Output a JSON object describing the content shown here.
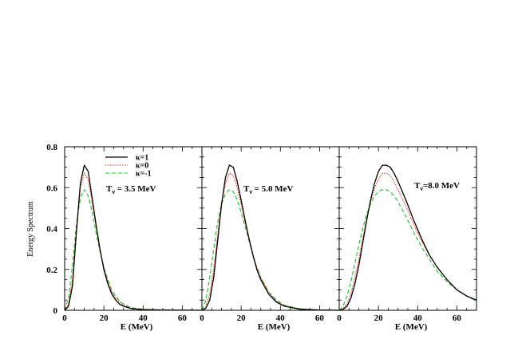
{
  "chart_data": {
    "type": "line",
    "ylabel": "Energy Spectrum",
    "xlabel": "E (MeV)",
    "ylim": [
      0,
      0.8
    ],
    "yticks": [
      0,
      0.2,
      0.4,
      0.6,
      0.8
    ],
    "ytick_labels": [
      "0",
      "0.2",
      "0.4",
      "0.6",
      "0.8"
    ],
    "xlim": [
      0,
      70
    ],
    "xticks": [
      0,
      20,
      40,
      60
    ],
    "xtick_labels": [
      "0",
      "20",
      "40",
      "60"
    ],
    "legend": {
      "placement": "top-left of first panel",
      "entries": [
        "κ=1",
        "κ=0",
        "κ=-1"
      ]
    },
    "series_styles": [
      {
        "key": "k1",
        "color": "#000000",
        "dash": "",
        "width": 1.3
      },
      {
        "key": "k0",
        "color": "#e8342a",
        "dash": "1.5,1.5",
        "width": 1.1
      },
      {
        "key": "km1",
        "color": "#22bb22",
        "dash": "5,3",
        "width": 1.1
      }
    ],
    "panels": [
      {
        "label": "T",
        "label_sub": "ν",
        "label_rest": " = 3.5 MeV",
        "peak_x": 10.5,
        "series": [
          {
            "key": "k1",
            "values": [
              [
                0,
                0
              ],
              [
                2,
                0.02
              ],
              [
                4,
                0.12
              ],
              [
                6,
                0.38
              ],
              [
                8,
                0.62
              ],
              [
                10,
                0.71
              ],
              [
                12,
                0.68
              ],
              [
                14,
                0.55
              ],
              [
                16,
                0.42
              ],
              [
                18,
                0.3
              ],
              [
                20,
                0.2
              ],
              [
                22,
                0.13
              ],
              [
                24,
                0.08
              ],
              [
                26,
                0.05
              ],
              [
                28,
                0.03
              ],
              [
                30,
                0.02
              ],
              [
                34,
                0.008
              ],
              [
                40,
                0.003
              ],
              [
                50,
                0.001
              ],
              [
                70,
                0
              ]
            ]
          },
          {
            "key": "k0",
            "values": [
              [
                0,
                0
              ],
              [
                2,
                0.03
              ],
              [
                4,
                0.15
              ],
              [
                6,
                0.4
              ],
              [
                8,
                0.6
              ],
              [
                10,
                0.67
              ],
              [
                12,
                0.64
              ],
              [
                14,
                0.53
              ],
              [
                16,
                0.41
              ],
              [
                18,
                0.3
              ],
              [
                20,
                0.21
              ],
              [
                22,
                0.14
              ],
              [
                24,
                0.09
              ],
              [
                26,
                0.06
              ],
              [
                28,
                0.04
              ],
              [
                30,
                0.025
              ],
              [
                34,
                0.01
              ],
              [
                40,
                0.004
              ],
              [
                50,
                0.001
              ],
              [
                70,
                0
              ]
            ]
          },
          {
            "key": "km1",
            "values": [
              [
                0,
                0
              ],
              [
                2,
                0.06
              ],
              [
                4,
                0.22
              ],
              [
                6,
                0.42
              ],
              [
                8,
                0.55
              ],
              [
                10,
                0.59
              ],
              [
                12,
                0.56
              ],
              [
                14,
                0.48
              ],
              [
                16,
                0.38
              ],
              [
                18,
                0.29
              ],
              [
                20,
                0.21
              ],
              [
                22,
                0.15
              ],
              [
                24,
                0.1
              ],
              [
                26,
                0.07
              ],
              [
                28,
                0.045
              ],
              [
                30,
                0.03
              ],
              [
                34,
                0.013
              ],
              [
                40,
                0.005
              ],
              [
                50,
                0.001
              ],
              [
                70,
                0
              ]
            ]
          }
        ]
      },
      {
        "label": "T",
        "label_sub": "ν",
        "label_rest": " = 5.0 MeV",
        "peak_x": 15,
        "series": [
          {
            "key": "k1",
            "values": [
              [
                0,
                0
              ],
              [
                2,
                0.01
              ],
              [
                4,
                0.05
              ],
              [
                6,
                0.16
              ],
              [
                8,
                0.34
              ],
              [
                10,
                0.52
              ],
              [
                12,
                0.65
              ],
              [
                14,
                0.71
              ],
              [
                16,
                0.7
              ],
              [
                18,
                0.63
              ],
              [
                20,
                0.54
              ],
              [
                22,
                0.44
              ],
              [
                24,
                0.35
              ],
              [
                26,
                0.27
              ],
              [
                28,
                0.2
              ],
              [
                30,
                0.15
              ],
              [
                34,
                0.08
              ],
              [
                38,
                0.04
              ],
              [
                42,
                0.02
              ],
              [
                50,
                0.005
              ],
              [
                60,
                0.001
              ],
              [
                70,
                0
              ]
            ]
          },
          {
            "key": "k0",
            "values": [
              [
                0,
                0
              ],
              [
                2,
                0.02
              ],
              [
                4,
                0.08
              ],
              [
                6,
                0.2
              ],
              [
                8,
                0.37
              ],
              [
                10,
                0.52
              ],
              [
                12,
                0.62
              ],
              [
                14,
                0.67
              ],
              [
                16,
                0.66
              ],
              [
                18,
                0.6
              ],
              [
                20,
                0.52
              ],
              [
                22,
                0.43
              ],
              [
                24,
                0.35
              ],
              [
                26,
                0.27
              ],
              [
                28,
                0.21
              ],
              [
                30,
                0.16
              ],
              [
                34,
                0.09
              ],
              [
                38,
                0.045
              ],
              [
                42,
                0.022
              ],
              [
                50,
                0.006
              ],
              [
                60,
                0.001
              ],
              [
                70,
                0
              ]
            ]
          },
          {
            "key": "km1",
            "values": [
              [
                0,
                0
              ],
              [
                2,
                0.05
              ],
              [
                4,
                0.16
              ],
              [
                6,
                0.3
              ],
              [
                8,
                0.43
              ],
              [
                10,
                0.52
              ],
              [
                12,
                0.57
              ],
              [
                14,
                0.59
              ],
              [
                16,
                0.58
              ],
              [
                18,
                0.54
              ],
              [
                20,
                0.48
              ],
              [
                22,
                0.41
              ],
              [
                24,
                0.34
              ],
              [
                26,
                0.27
              ],
              [
                28,
                0.21
              ],
              [
                30,
                0.16
              ],
              [
                34,
                0.09
              ],
              [
                38,
                0.05
              ],
              [
                42,
                0.025
              ],
              [
                50,
                0.007
              ],
              [
                60,
                0.001
              ],
              [
                70,
                0
              ]
            ]
          }
        ]
      },
      {
        "label": "T",
        "label_sub": "ν",
        "label_rest": "=8.0 MeV",
        "peak_x": 24,
        "series": [
          {
            "key": "k1",
            "values": [
              [
                0,
                0
              ],
              [
                2,
                0.005
              ],
              [
                4,
                0.02
              ],
              [
                6,
                0.06
              ],
              [
                8,
                0.13
              ],
              [
                10,
                0.22
              ],
              [
                12,
                0.33
              ],
              [
                14,
                0.44
              ],
              [
                16,
                0.54
              ],
              [
                18,
                0.62
              ],
              [
                20,
                0.68
              ],
              [
                22,
                0.71
              ],
              [
                24,
                0.71
              ],
              [
                26,
                0.7
              ],
              [
                28,
                0.67
              ],
              [
                30,
                0.63
              ],
              [
                34,
                0.54
              ],
              [
                38,
                0.44
              ],
              [
                42,
                0.35
              ],
              [
                46,
                0.27
              ],
              [
                50,
                0.21
              ],
              [
                55,
                0.15
              ],
              [
                60,
                0.1
              ],
              [
                65,
                0.07
              ],
              [
                70,
                0.05
              ]
            ]
          },
          {
            "key": "k0",
            "values": [
              [
                0,
                0
              ],
              [
                2,
                0.008
              ],
              [
                4,
                0.03
              ],
              [
                6,
                0.08
              ],
              [
                8,
                0.16
              ],
              [
                10,
                0.25
              ],
              [
                12,
                0.35
              ],
              [
                14,
                0.45
              ],
              [
                16,
                0.53
              ],
              [
                18,
                0.6
              ],
              [
                20,
                0.64
              ],
              [
                22,
                0.67
              ],
              [
                24,
                0.67
              ],
              [
                26,
                0.66
              ],
              [
                28,
                0.63
              ],
              [
                30,
                0.59
              ],
              [
                34,
                0.51
              ],
              [
                38,
                0.42
              ],
              [
                42,
                0.34
              ],
              [
                46,
                0.27
              ],
              [
                50,
                0.21
              ],
              [
                55,
                0.15
              ],
              [
                60,
                0.1
              ],
              [
                65,
                0.07
              ],
              [
                70,
                0.05
              ]
            ]
          },
          {
            "key": "km1",
            "values": [
              [
                0,
                0
              ],
              [
                2,
                0.02
              ],
              [
                4,
                0.07
              ],
              [
                6,
                0.14
              ],
              [
                8,
                0.23
              ],
              [
                10,
                0.32
              ],
              [
                12,
                0.4
              ],
              [
                14,
                0.47
              ],
              [
                16,
                0.52
              ],
              [
                18,
                0.56
              ],
              [
                20,
                0.58
              ],
              [
                22,
                0.59
              ],
              [
                24,
                0.59
              ],
              [
                26,
                0.58
              ],
              [
                28,
                0.56
              ],
              [
                30,
                0.53
              ],
              [
                34,
                0.46
              ],
              [
                38,
                0.38
              ],
              [
                42,
                0.31
              ],
              [
                46,
                0.25
              ],
              [
                50,
                0.19
              ],
              [
                55,
                0.14
              ],
              [
                60,
                0.1
              ],
              [
                65,
                0.07
              ],
              [
                70,
                0.045
              ]
            ]
          }
        ]
      }
    ]
  }
}
